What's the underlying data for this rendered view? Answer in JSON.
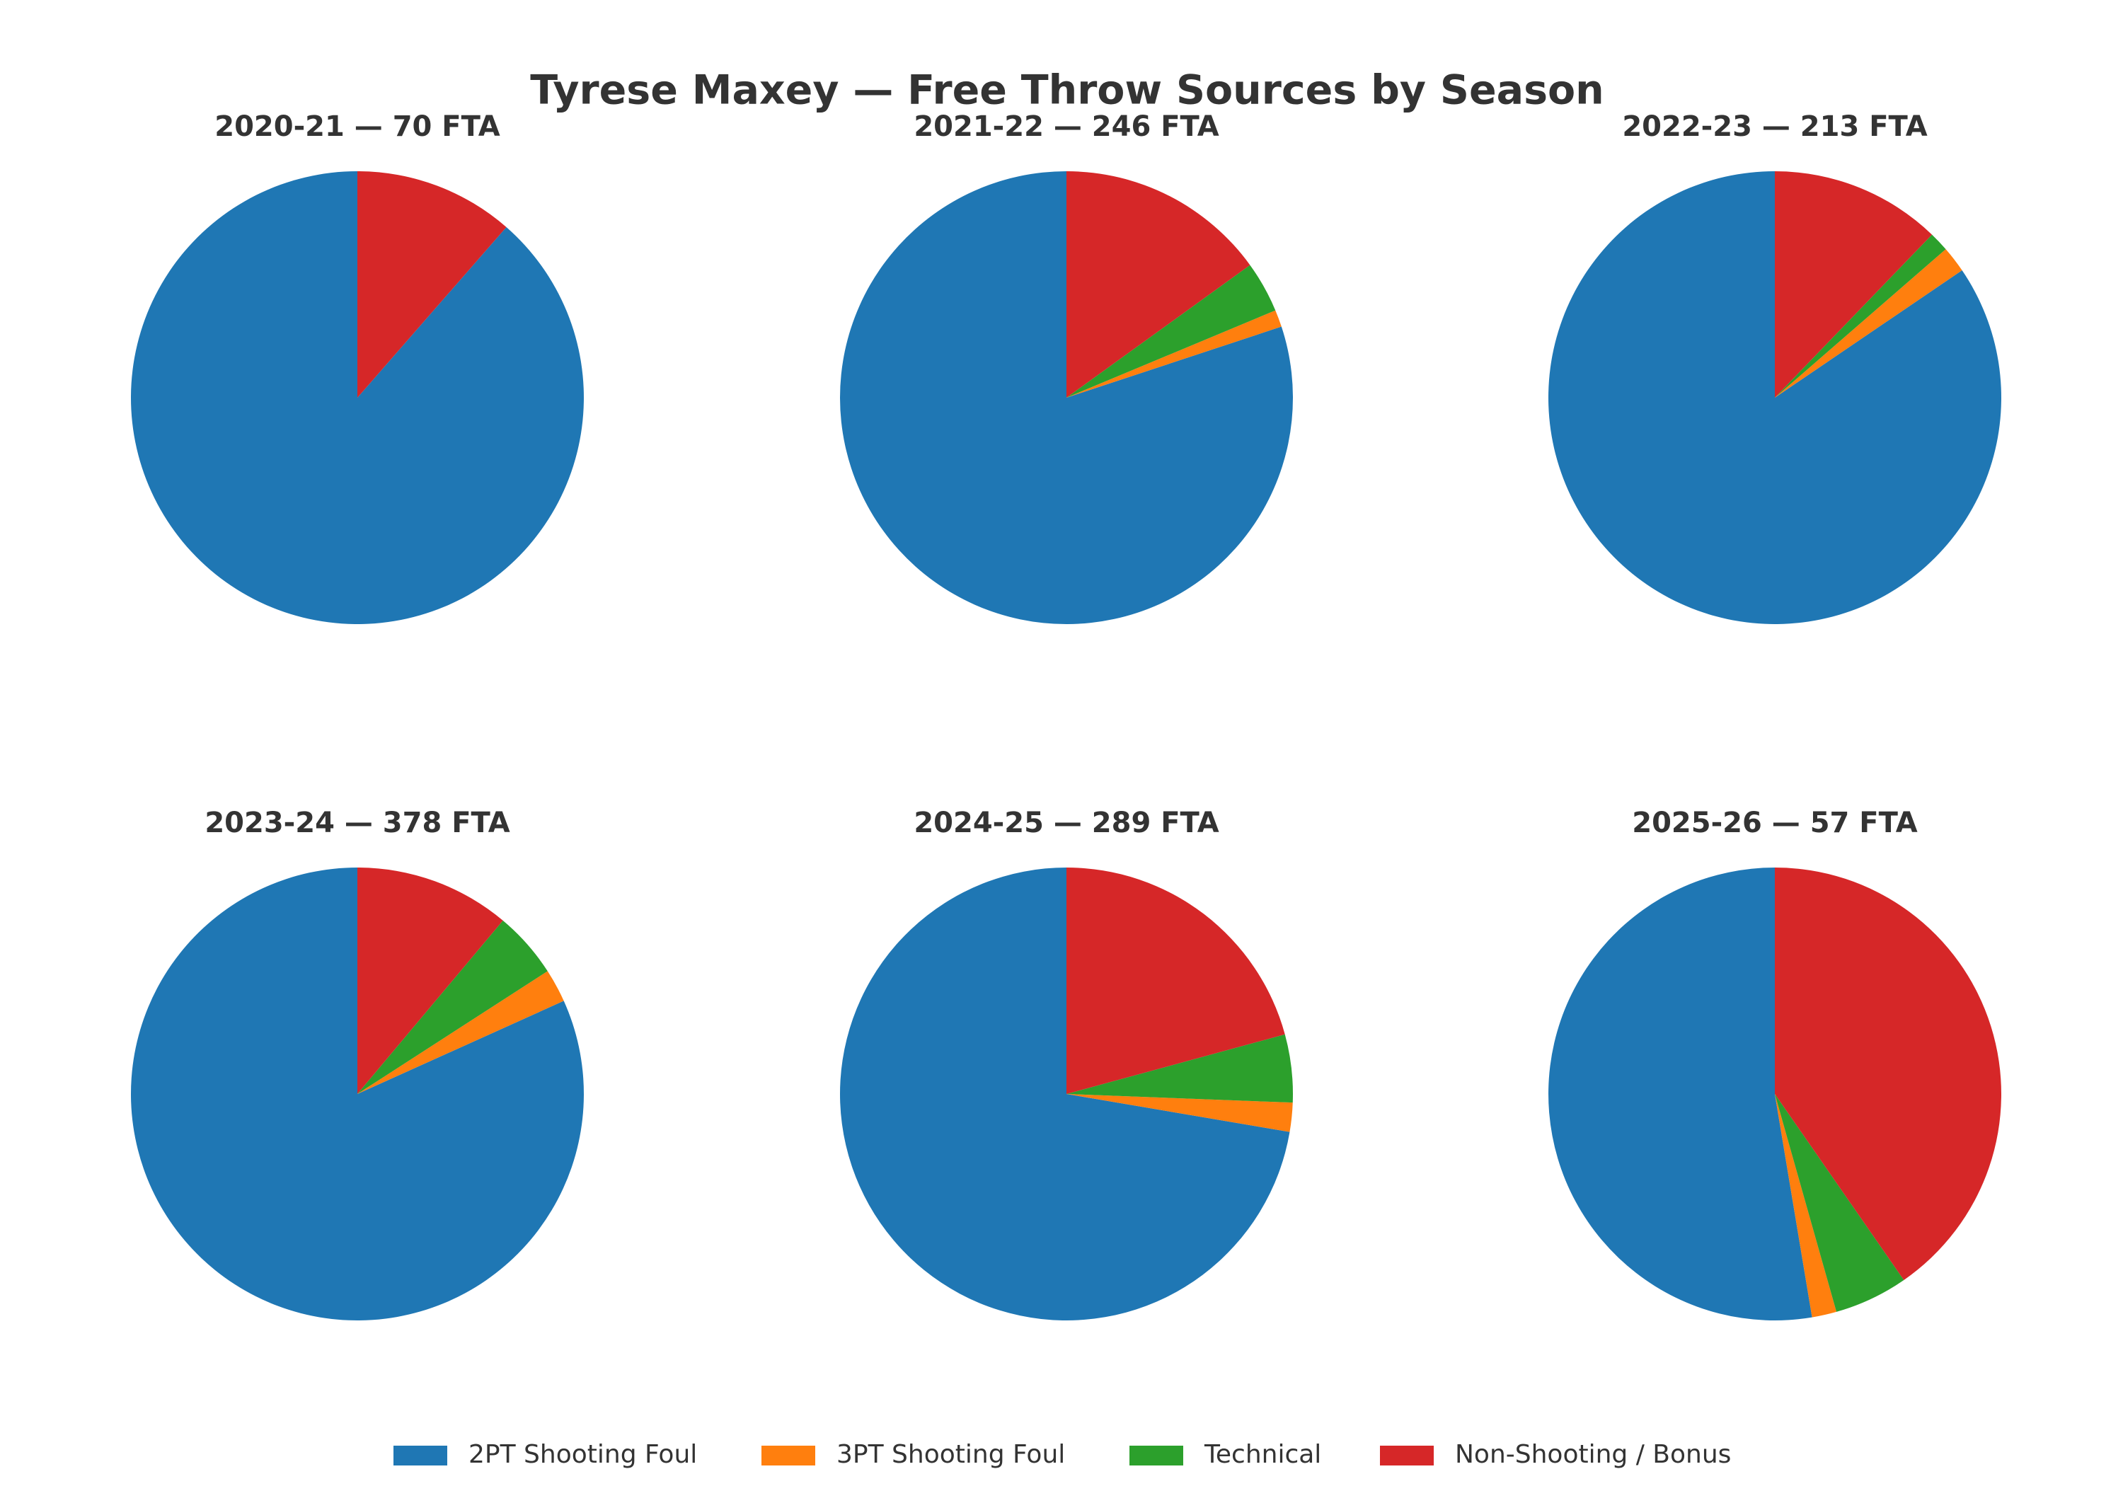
{
  "chart_data": {
    "type": "pie",
    "title": "Tyrese Maxey — Free Throw Sources by Season",
    "start_angle": "12 o'clock",
    "direction": "counter-clockwise",
    "legend_position": "bottom-center",
    "categories": [
      "2PT Shooting Foul",
      "3PT Shooting Foul",
      "Technical",
      "Non-Shooting / Bonus"
    ],
    "colors": [
      "#1f77b4",
      "#ff7f0e",
      "#2ca02c",
      "#d62728"
    ],
    "pies": [
      {
        "title": "2020-21 — 70 FTA",
        "season": "2020-21",
        "fta": 70,
        "values": [
          62,
          0,
          0,
          8
        ]
      },
      {
        "title": "2021-22 — 246 FTA",
        "season": "2021-22",
        "fta": 246,
        "values": [
          197,
          3,
          9,
          37
        ]
      },
      {
        "title": "2022-23 — 213 FTA",
        "season": "2022-23",
        "fta": 213,
        "values": [
          180,
          4,
          3,
          26
        ]
      },
      {
        "title": "2023-24 — 378 FTA",
        "season": "2023-24",
        "fta": 378,
        "values": [
          309,
          9,
          18,
          42
        ]
      },
      {
        "title": "2024-25 — 289 FTA",
        "season": "2024-25",
        "fta": 289,
        "values": [
          209,
          6,
          14,
          60
        ]
      },
      {
        "title": "2025-26 — 57 FTA",
        "season": "2025-26",
        "fta": 57,
        "values": [
          30,
          1,
          3,
          23
        ]
      }
    ]
  }
}
